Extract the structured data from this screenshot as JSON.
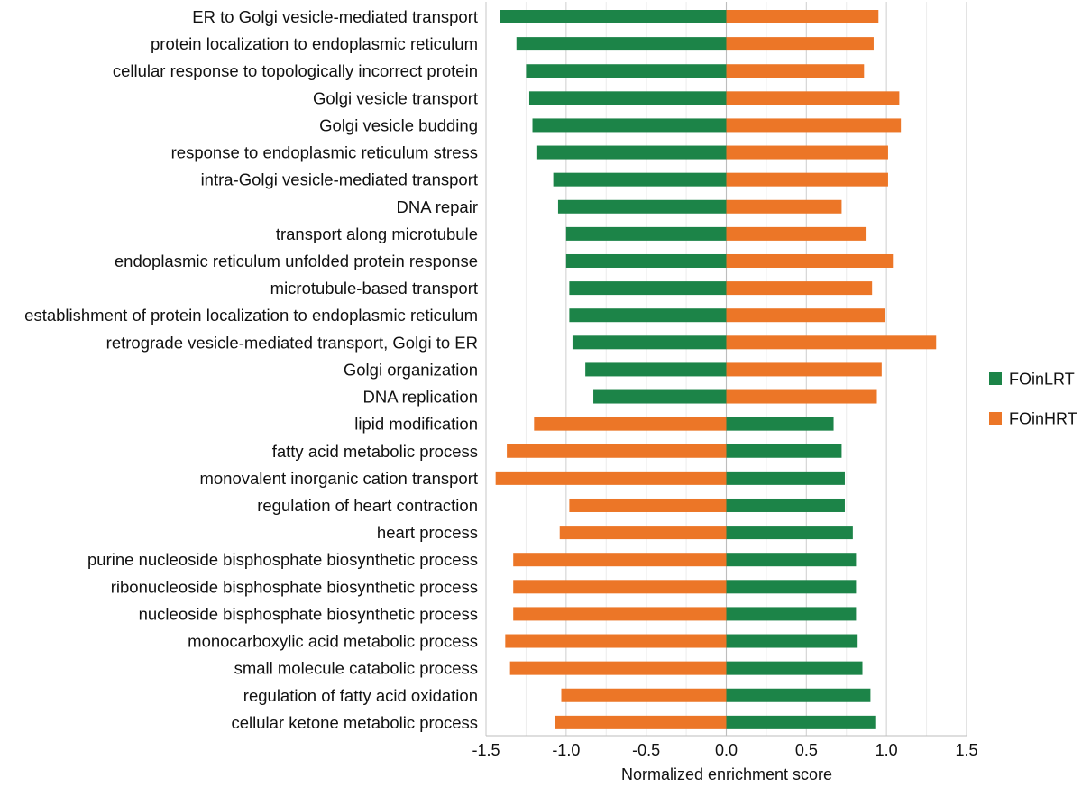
{
  "chart_data": {
    "type": "bar",
    "orientation": "horizontal",
    "title": "",
    "xlabel": "Normalized enrichment score",
    "ylabel": "",
    "xlim": [
      -1.5,
      1.5
    ],
    "xticks": [
      "-1.5",
      "-1.0",
      "-0.5",
      "0.0",
      "0.5",
      "1.0",
      "1.5"
    ],
    "grid": true,
    "legend_position": "right",
    "colors": {
      "FOinLRT": "#1c8448",
      "FOinHRT": "#ec7627"
    },
    "categories": [
      "ER to Golgi vesicle-mediated transport",
      "protein localization to endoplasmic reticulum",
      "cellular response to topologically incorrect protein",
      "Golgi vesicle transport",
      "Golgi vesicle budding",
      "response to endoplasmic reticulum stress",
      "intra-Golgi vesicle-mediated transport",
      "DNA repair",
      "transport along microtubule",
      "endoplasmic reticulum unfolded protein response",
      "microtubule-based transport",
      "establishment of protein localization to endoplasmic reticulum",
      "retrograde vesicle-mediated transport, Golgi to ER",
      "Golgi organization",
      "DNA replication",
      "lipid modification",
      "fatty acid metabolic process",
      "monovalent inorganic cation transport",
      "regulation of heart contraction",
      "heart process",
      "purine nucleoside bisphosphate biosynthetic process",
      "ribonucleoside bisphosphate biosynthetic process",
      "nucleoside bisphosphate biosynthetic process",
      "monocarboxylic acid metabolic process",
      "small molecule catabolic process",
      "regulation of fatty acid oxidation",
      "cellular ketone metabolic process"
    ],
    "series": [
      {
        "name": "FOinLRT",
        "values": [
          -1.41,
          -1.31,
          -1.25,
          -1.23,
          -1.21,
          -1.18,
          -1.08,
          -1.05,
          -1.0,
          -1.0,
          -0.98,
          -0.98,
          -0.96,
          -0.88,
          -0.83,
          0.67,
          0.72,
          0.74,
          0.74,
          0.79,
          0.81,
          0.81,
          0.81,
          0.82,
          0.85,
          0.9,
          0.93
        ]
      },
      {
        "name": "FOinHRT",
        "values": [
          0.95,
          0.92,
          0.86,
          1.08,
          1.09,
          1.01,
          1.01,
          0.72,
          0.87,
          1.04,
          0.91,
          0.99,
          1.31,
          0.97,
          0.94,
          -1.2,
          -1.37,
          -1.44,
          -0.98,
          -1.04,
          -1.33,
          -1.33,
          -1.33,
          -1.38,
          -1.35,
          -1.03,
          -1.07
        ]
      }
    ]
  }
}
